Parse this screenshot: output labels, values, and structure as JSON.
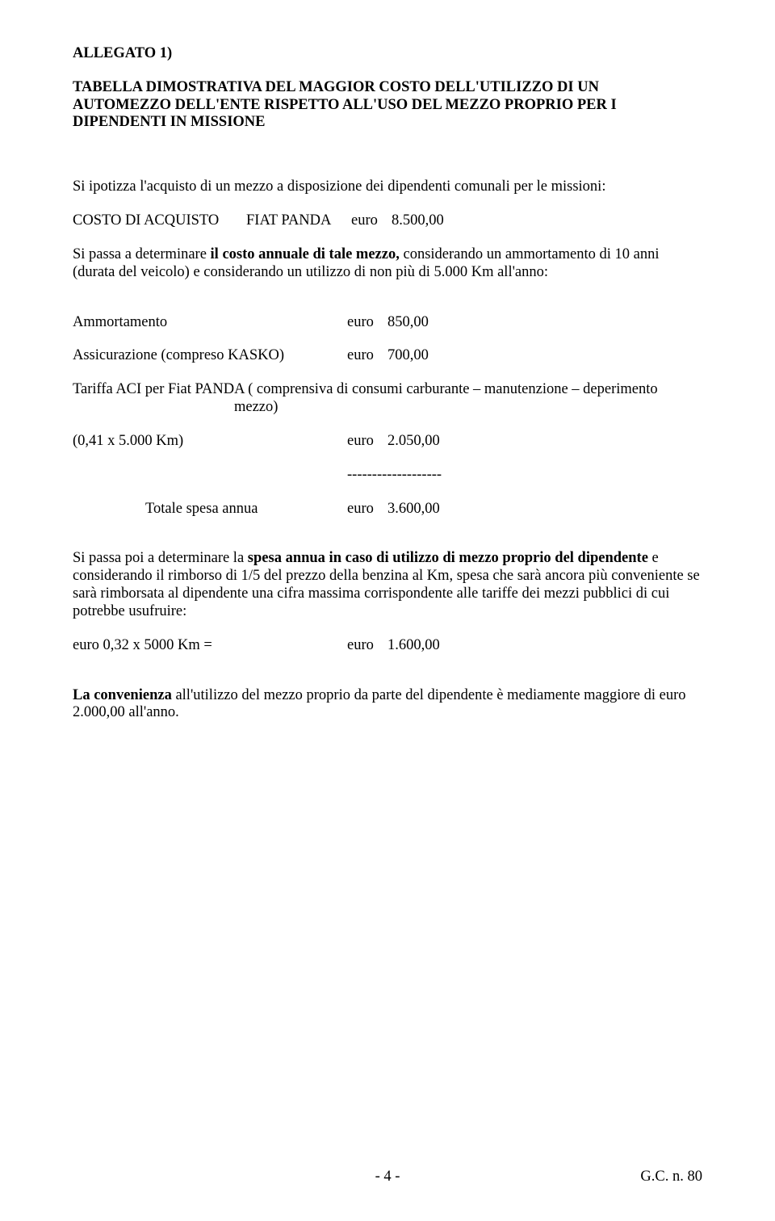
{
  "header": {
    "allegato": "ALLEGATO 1)",
    "title_l1": "TABELLA DIMOSTRATIVA DEL MAGGIOR COSTO DELL'UTILIZZO DI UN",
    "title_l2": "AUTOMEZZO DELL'ENTE RISPETTO ALL'USO DEL MEZZO PROPRIO PER I",
    "title_l3": "DIPENDENTI IN MISSIONE"
  },
  "p1": "Si ipotizza l'acquisto di un mezzo a disposizione dei dipendenti comunali per le missioni:",
  "acquisto": {
    "label": "COSTO DI ACQUISTO",
    "mezzo": "FIAT PANDA",
    "euro": "euro",
    "val": "8.500,00"
  },
  "p2a": "Si passa a determinare ",
  "p2b": "il costo annuale di tale mezzo,",
  "p2c": " considerando un ammortamento di 10 anni (durata del veicolo) e considerando un utilizzo di non più di 5.000 Km all'anno:",
  "rows": {
    "ammortamento": {
      "label": "Ammortamento",
      "euro": "euro",
      "val": "850,00"
    },
    "assicurazione": {
      "label": "Assicurazione (compreso KASKO)",
      "euro": "euro",
      "val": "700,00"
    }
  },
  "p3": "Tariffa ACI per Fiat PANDA ( comprensiva di consumi carburante – manutenzione – deperimento",
  "p3b": "mezzo)",
  "km": {
    "label": "(0,41 x 5.000 Km)",
    "euro": "euro",
    "val": "2.050,00"
  },
  "sep": "-------------------",
  "totale": {
    "label": "Totale spesa annua",
    "euro": "euro",
    "val": "3.600,00"
  },
  "p4a": "Si passa poi a determinare la ",
  "p4b": "spesa annua in caso di utilizzo di mezzo proprio del dipendente",
  "p4c": " e considerando il rimborso di 1/5 del prezzo della benzina al Km, spesa che sarà ancora più conveniente se sarà rimborsata al dipendente una cifra massima corrispondente  alle tariffe dei mezzi pubblici di cui potrebbe usufruire:",
  "eurokm": {
    "label": "euro 0,32 x 5000 Km  =",
    "euro": "euro",
    "val": "1.600,00"
  },
  "p5a": "La convenienza",
  "p5b": " all'utilizzo del mezzo proprio da parte del dipendente  è mediamente maggiore di euro 2.000,00 all'anno.",
  "footer": {
    "page": "- 4 -",
    "ref": "G.C. n. 80"
  }
}
